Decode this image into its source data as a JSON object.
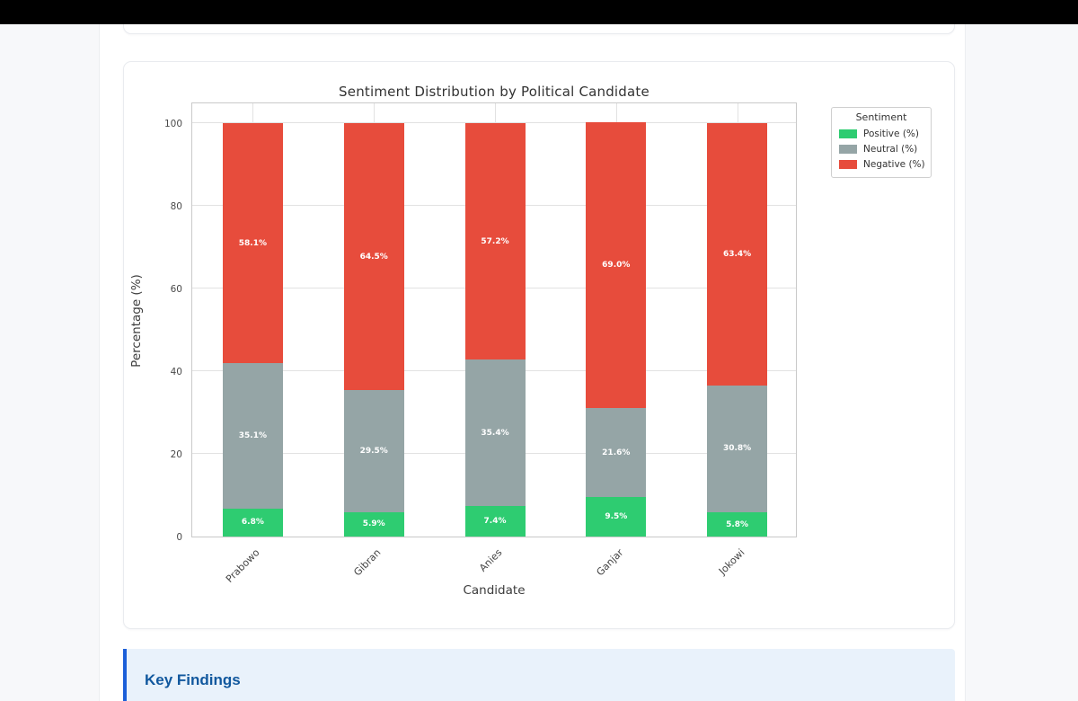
{
  "theme": {
    "page_bg": "#f7f8fa",
    "content_bg": "#ffffff",
    "top_bar_color": "#000000",
    "card_border": "#e9ebef",
    "info_box_bg": "#e9f2fb",
    "info_border_blue": "#1b5fd9",
    "heading_blue": "#11589e",
    "grid_color": "#e2e2e2"
  },
  "sections": {
    "key_findings": {
      "title": "Key Findings"
    }
  },
  "chart_data": {
    "type": "bar",
    "stacked": true,
    "title": "Sentiment Distribution by Political Candidate",
    "xlabel": "Candidate",
    "ylabel": "Percentage (%)",
    "categories": [
      "Prabowo",
      "Gibran",
      "Anies",
      "Ganjar",
      "Jokowi"
    ],
    "series": [
      {
        "name": "Positive (%)",
        "color": "#2ecc71",
        "values": [
          6.8,
          5.9,
          7.4,
          9.5,
          5.8
        ],
        "labels": [
          "6.8%",
          "5.9%",
          "7.4%",
          "9.5%",
          "5.8%"
        ]
      },
      {
        "name": "Neutral (%)",
        "color": "#95a5a6",
        "values": [
          35.1,
          29.5,
          35.4,
          21.6,
          30.8
        ],
        "labels": [
          "35.1%",
          "29.5%",
          "35.4%",
          "21.6%",
          "30.8%"
        ]
      },
      {
        "name": "Negative (%)",
        "color": "#e74c3c",
        "values": [
          58.1,
          64.5,
          57.2,
          69.0,
          63.4
        ],
        "labels": [
          "58.1%",
          "64.5%",
          "57.2%",
          "69.0%",
          "63.4%"
        ]
      }
    ],
    "legend_title": "Sentiment",
    "legend_position": "outside-right",
    "yticks": [
      0,
      20,
      40,
      60,
      80,
      100
    ],
    "ylim": [
      0,
      105.2
    ],
    "grid": true
  }
}
